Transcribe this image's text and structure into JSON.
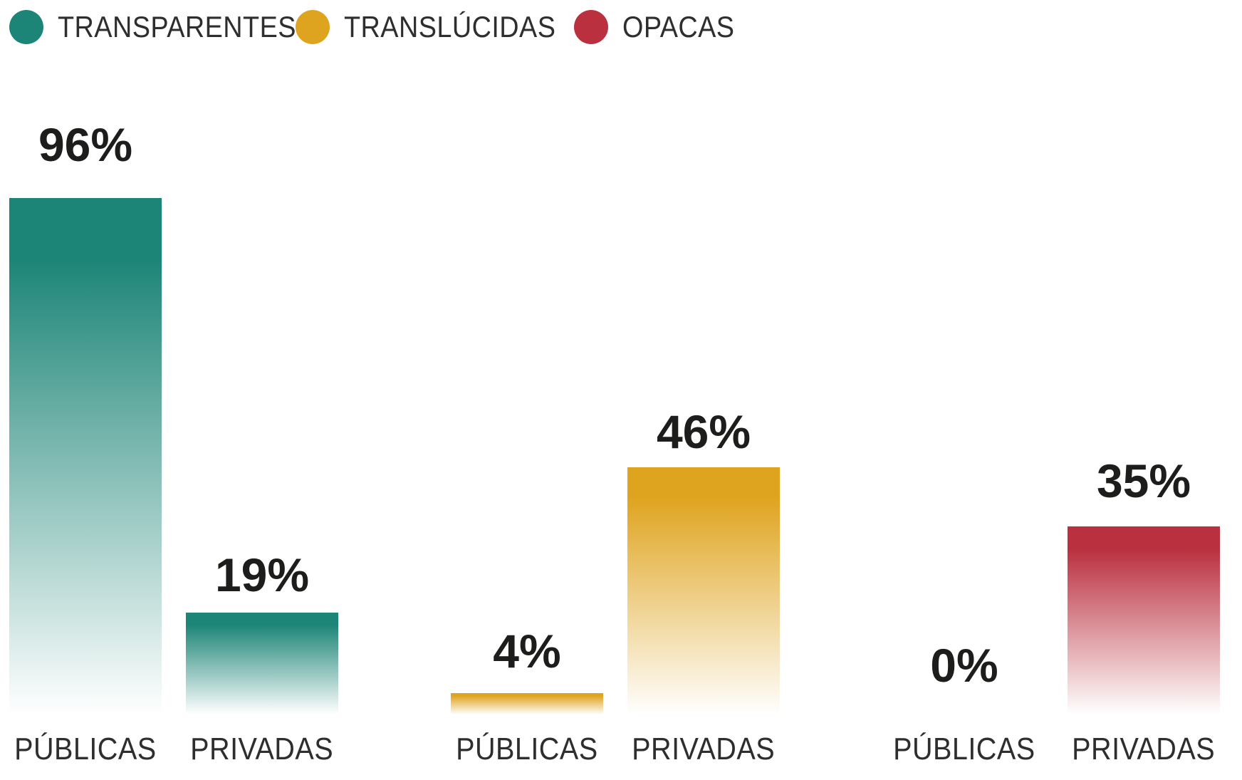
{
  "chart_data": {
    "type": "bar",
    "title": "",
    "legend_position": "top-left",
    "grid": false,
    "ylim": [
      0,
      100
    ],
    "value_suffix": "%",
    "categories": [
      "PÚBLICAS",
      "PRIVADAS"
    ],
    "legend": [
      {
        "label": "TRANSPARENTES",
        "color": "#1d8577"
      },
      {
        "label": "TRANSLÚCIDAS",
        "color": "#dfa41f"
      },
      {
        "label": "OPACAS",
        "color": "#ba303f"
      }
    ],
    "series": [
      {
        "name": "TRANSPARENTES",
        "color": "#1d8577",
        "values": [
          96,
          19
        ],
        "value_labels": [
          "96%",
          "19%"
        ]
      },
      {
        "name": "TRANSLÚCIDAS",
        "color": "#dfa41f",
        "values": [
          4,
          46
        ],
        "value_labels": [
          "4%",
          "46%"
        ]
      },
      {
        "name": "OPACAS",
        "color": "#ba303f",
        "values": [
          0,
          35
        ],
        "value_labels": [
          "0%",
          "35%"
        ]
      }
    ]
  }
}
